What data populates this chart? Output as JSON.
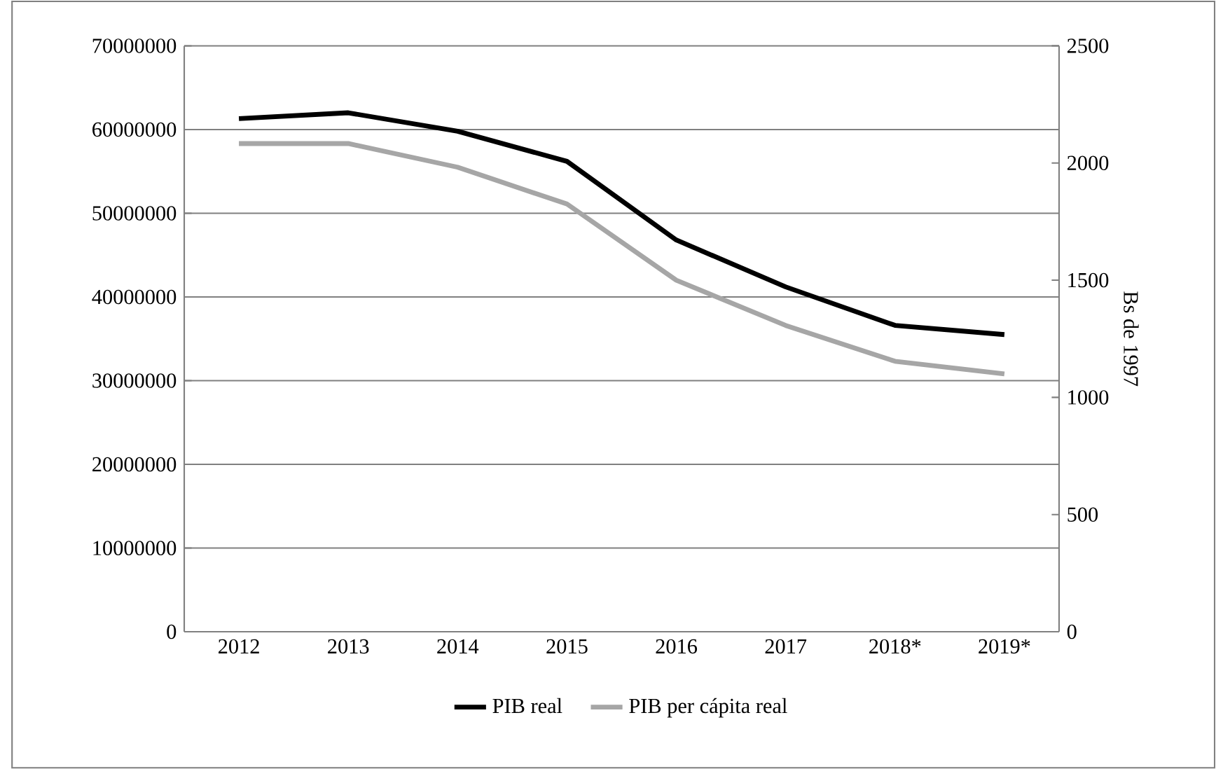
{
  "chart_data": {
    "type": "line",
    "categories": [
      "2012",
      "2013",
      "2014",
      "2015",
      "2016",
      "2017",
      "2018*",
      "2019*"
    ],
    "series": [
      {
        "name": "PIB real",
        "color": "#000000",
        "values": [
          61300000,
          62000000,
          59800000,
          56200000,
          46800000,
          41200000,
          36600000,
          35500000
        ]
      },
      {
        "name": "PIB per cápita real",
        "color": "#a6a6a6",
        "axis": "y2",
        "values": [
          2083,
          2083,
          1982,
          1825,
          1500,
          1307,
          1154,
          1100
        ]
      }
    ],
    "y2label": "Bs de 1997",
    "ylim": [
      0,
      70000000
    ],
    "yticks": [
      0,
      10000000,
      20000000,
      30000000,
      40000000,
      50000000,
      60000000,
      70000000
    ],
    "y2lim": [
      0,
      2500
    ],
    "y2ticks": [
      0,
      500,
      1000,
      1500,
      2000,
      2500
    ],
    "grid": "y",
    "legend": "bottom",
    "marker": "none",
    "line_style": "solid"
  }
}
